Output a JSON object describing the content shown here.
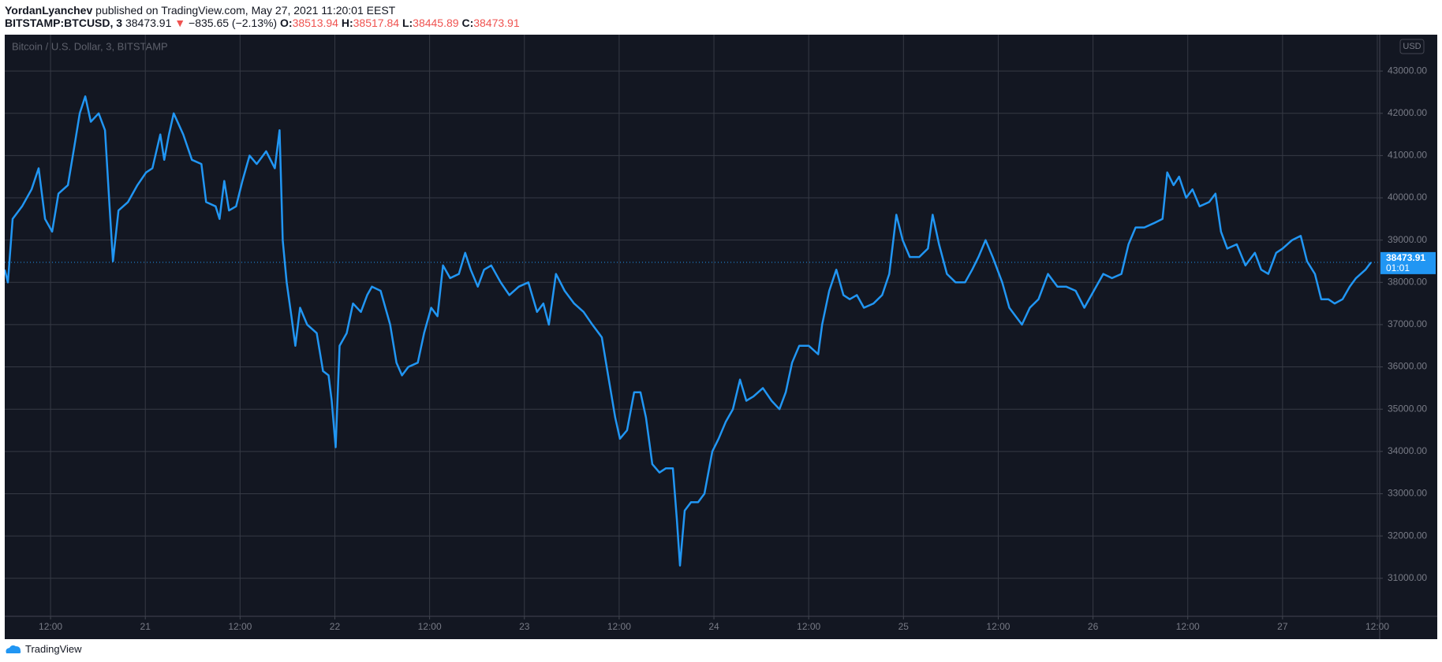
{
  "header": {
    "author": "YordanLyanchev",
    "published": "published on TradingView.com, May 27, 2021 11:20:01 EEST",
    "symbol": "BITSTAMP:BTCUSD, 3",
    "last": "38473.91",
    "arrow": "▼",
    "change": "−835.65 (−2.13%)",
    "o_label": "O:",
    "open": "38513.94",
    "h_label": "H:",
    "high": "38517.84",
    "l_label": "L:",
    "low": "38445.89",
    "c_label": "C:",
    "close": "38473.91"
  },
  "footer": {
    "brand": "TradingView"
  },
  "chart_data": {
    "type": "line",
    "currency": "USD",
    "price_label": "38473.91",
    "countdown": "01:01",
    "grid": true,
    "x": [
      6.2,
      6.6,
      7.2,
      8.4,
      9.6,
      10.5,
      11.3,
      12.2,
      13.0,
      14.2,
      15.0,
      15.7,
      16.4,
      17.1,
      18.1,
      18.9,
      19.5,
      19.9,
      20.6,
      21.8,
      23.0,
      24.1,
      24.9,
      25.9,
      26.4,
      27.0,
      27.6,
      28.8,
      29.9,
      31.1,
      31.7,
      32.9,
      33.4,
      34.0,
      34.6,
      35.5,
      36.3,
      37.2,
      38.1,
      39.3,
      40.4,
      41.0,
      41.4,
      41.9,
      42.5,
      43.0,
      43.6,
      44.5,
      45.7,
      46.5,
      47.2,
      47.6,
      48.1,
      48.6,
      49.5,
      50.3,
      51.3,
      52.1,
      52.7,
      53.8,
      55.0,
      55.8,
      56.5,
      57.3,
      58.5,
      59.3,
      60.2,
      61.0,
      61.7,
      62.6,
      63.7,
      64.5,
      65.2,
      66.1,
      66.9,
      67.8,
      69.0,
      70.1,
      71.3,
      72.5,
      73.6,
      74.4,
      75.1,
      76.0,
      77.1,
      78.3,
      79.5,
      80.6,
      81.8,
      82.6,
      83.5,
      84.1,
      85.0,
      85.9,
      86.7,
      87.4,
      88.2,
      89.1,
      89.9,
      90.8,
      91.3,
      91.7,
      92.3,
      93.1,
      94.0,
      94.8,
      95.8,
      96.6,
      97.5,
      98.4,
      99.3,
      100.1,
      101.0,
      102.2,
      103.3,
      104.3,
      105.1,
      105.9,
      106.8,
      108.0,
      109.2,
      109.7,
      110.6,
      111.5,
      112.4,
      113.2,
      114.1,
      115.0,
      116.2,
      117.3,
      118.2,
      119.1,
      119.9,
      120.8,
      122.0,
      123.1,
      123.7,
      124.5,
      125.5,
      126.6,
      127.8,
      128.7,
      129.5,
      130.4,
      131.3,
      132.5,
      133.4,
      134.2,
      135.0,
      136.0,
      137.1,
      138.3,
      139.5,
      140.6,
      141.8,
      142.9,
      144.1,
      145.3,
      146.4,
      147.6,
      148.5,
      149.4,
      150.5,
      151.7,
      152.8,
      153.4,
      154.2,
      154.9,
      155.8,
      156.6,
      157.5,
      158.7,
      159.5,
      160.2,
      161.0,
      162.2,
      163.3,
      164.5,
      165.3,
      166.2,
      167.2,
      168.0,
      169.2,
      170.3,
      171.1,
      172.1,
      172.9,
      173.8,
      174.6,
      175.6,
      176.5,
      177.3,
      178.5,
      179.2
    ],
    "series": [
      {
        "name": "Bitcoin / U.S. Dollar, 3, BITSTAMP",
        "color": "#2196f3",
        "values": [
          38300,
          38000,
          39500,
          39800,
          40200,
          40700,
          39500,
          39200,
          40100,
          40300,
          41200,
          42000,
          42400,
          41800,
          42000,
          41600,
          39700,
          38500,
          39700,
          39900,
          40300,
          40600,
          40700,
          41500,
          40900,
          41500,
          42000,
          41500,
          40900,
          40800,
          39900,
          39800,
          39500,
          40400,
          39700,
          39800,
          40400,
          41000,
          40800,
          41100,
          40700,
          41600,
          39000,
          38000,
          37200,
          36500,
          37400,
          37000,
          36800,
          35900,
          35800,
          35200,
          34100,
          36500,
          36800,
          37500,
          37300,
          37700,
          37900,
          37800,
          37000,
          36100,
          35800,
          36000,
          36100,
          36800,
          37400,
          37200,
          38400,
          38100,
          38200,
          38700,
          38300,
          37900,
          38300,
          38400,
          38000,
          37700,
          37900,
          38000,
          37300,
          37500,
          37000,
          38200,
          37800,
          37500,
          37300,
          37000,
          36700,
          35800,
          34800,
          34300,
          34500,
          35400,
          35400,
          34800,
          33700,
          33500,
          33600,
          33600,
          32400,
          31300,
          32600,
          32800,
          32800,
          33000,
          34000,
          34300,
          34700,
          35000,
          35700,
          35200,
          35300,
          35500,
          35200,
          35000,
          35400,
          36100,
          36500,
          36500,
          36300,
          37000,
          37800,
          38300,
          37700,
          37600,
          37700,
          37400,
          37500,
          37700,
          38200,
          39600,
          39000,
          38600,
          38600,
          38800,
          39600,
          38900,
          38200,
          38000,
          38000,
          38300,
          38600,
          39000,
          38600,
          38000,
          37400,
          37200,
          37000,
          37400,
          37600,
          38200,
          37900,
          37900,
          37800,
          37400,
          37800,
          38200,
          38100,
          38200,
          38900,
          39300,
          39300,
          39400,
          39500,
          40600,
          40300,
          40500,
          40000,
          40200,
          39800,
          39900,
          40100,
          39200,
          38800,
          38900,
          38400,
          38700,
          38300,
          38200,
          38700,
          38800,
          39000,
          39100,
          38500,
          38200,
          37600,
          37600,
          37500,
          37600,
          37900,
          38100,
          38300,
          38474
        ]
      }
    ],
    "xlim": [
      6.2,
      180.3
    ],
    "xticks": [
      {
        "value": 12,
        "label": "12:00"
      },
      {
        "value": 24,
        "label": "21"
      },
      {
        "value": 36,
        "label": "12:00"
      },
      {
        "value": 48,
        "label": "22"
      },
      {
        "value": 60,
        "label": "12:00"
      },
      {
        "value": 72,
        "label": "23"
      },
      {
        "value": 84,
        "label": "12:00"
      },
      {
        "value": 96,
        "label": "24"
      },
      {
        "value": 108,
        "label": "12:00"
      },
      {
        "value": 120,
        "label": "25"
      },
      {
        "value": 132,
        "label": "12:00"
      },
      {
        "value": 144,
        "label": "26"
      },
      {
        "value": 156,
        "label": "12:00"
      },
      {
        "value": 168,
        "label": "27"
      },
      {
        "value": 180,
        "label": "12:00"
      }
    ],
    "ylim": [
      30100,
      43860
    ],
    "yticks": [
      {
        "value": 31000,
        "label": "31000.00"
      },
      {
        "value": 32000,
        "label": "32000.00"
      },
      {
        "value": 33000,
        "label": "33000.00"
      },
      {
        "value": 34000,
        "label": "34000.00"
      },
      {
        "value": 35000,
        "label": "35000.00"
      },
      {
        "value": 36000,
        "label": "36000.00"
      },
      {
        "value": 37000,
        "label": "37000.00"
      },
      {
        "value": 38000,
        "label": "38000.00"
      },
      {
        "value": 39000,
        "label": "39000.00"
      },
      {
        "value": 40000,
        "label": "40000.00"
      },
      {
        "value": 41000,
        "label": "41000.00"
      },
      {
        "value": 42000,
        "label": "42000.00"
      },
      {
        "value": 43000,
        "label": "43000.00"
      }
    ]
  }
}
